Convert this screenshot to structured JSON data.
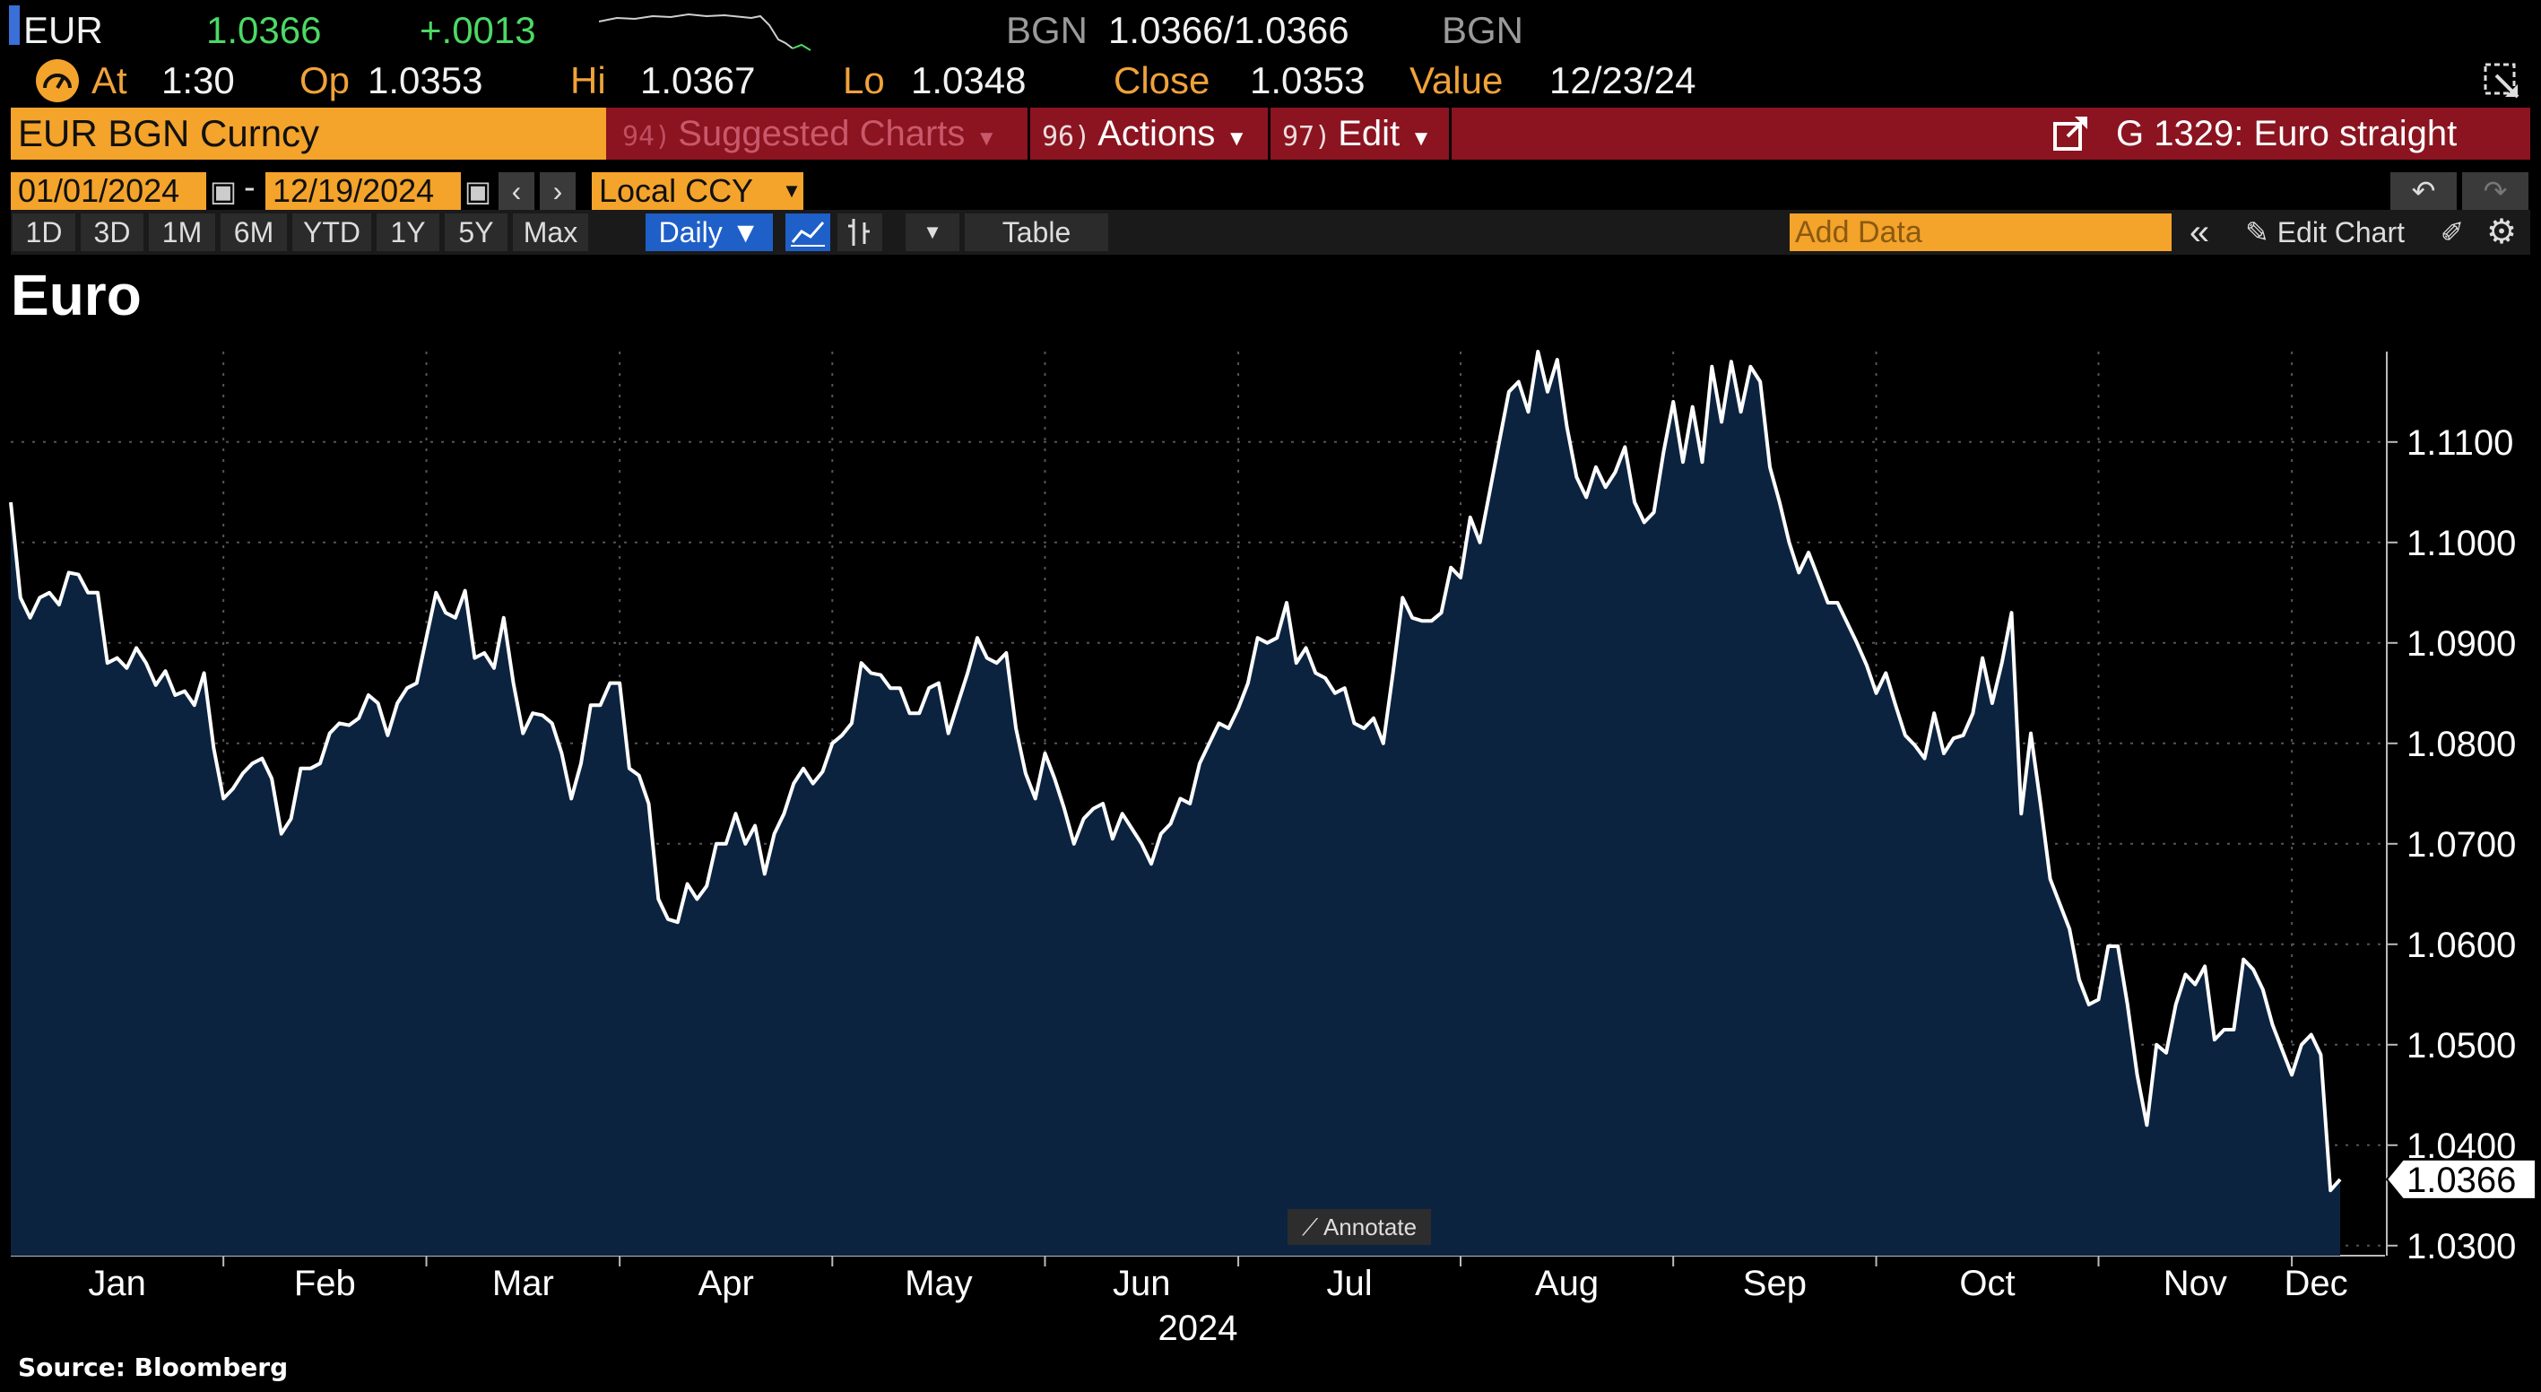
{
  "quote": {
    "ticker": "EUR",
    "last": "1.0366",
    "change": "+.0013",
    "bgn_left": "BGN",
    "bid_ask": "1.0366/1.0366",
    "bgn_right": "BGN",
    "at_label": "At",
    "at_value": "1:30",
    "op_label": "Op",
    "op_value": "1.0353",
    "hi_label": "Hi",
    "hi_value": "1.0367",
    "lo_label": "Lo",
    "lo_value": "1.0348",
    "close_label": "Close",
    "close_value": "1.0353",
    "value_label": "Value",
    "value_value": "12/23/24"
  },
  "toolbar": {
    "security": "EUR BGN Curncy",
    "suggested": {
      "num": "94)",
      "label": "Suggested Charts"
    },
    "actions": {
      "num": "96)",
      "label": "Actions"
    },
    "edit": {
      "num": "97)",
      "label": "Edit"
    },
    "chart_ref": "G 1329: Euro straight"
  },
  "dates": {
    "start": "01/01/2024",
    "end": "12/19/2024",
    "currency": "Local CCY"
  },
  "ranges": [
    "1D",
    "3D",
    "1M",
    "6M",
    "YTD",
    "1Y",
    "5Y",
    "Max"
  ],
  "frequency": "Daily",
  "table_label": "Table",
  "add_data_placeholder": "Add Data",
  "edit_chart_label": "Edit Chart",
  "annotate_label": "Annotate",
  "source": "Source: Bloomberg",
  "colors": {
    "line": "#ffffff",
    "area": "#0c2340",
    "accent": "#f4a32b",
    "toolbar_red": "#8b1420",
    "up_green": "#4cd964"
  },
  "chart_data": {
    "type": "area",
    "title": "Euro",
    "xlabel": "2024",
    "ylabel": "",
    "x_tick_labels": [
      "Jan",
      "Feb",
      "Mar",
      "Apr",
      "May",
      "Jun",
      "Jul",
      "Aug",
      "Sep",
      "Oct",
      "Nov",
      "Dec"
    ],
    "y_ticks": [
      "1.1100",
      "1.1000",
      "1.0900",
      "1.0800",
      "1.0700",
      "1.0600",
      "1.0500",
      "1.0400",
      "1.0300"
    ],
    "ylim": [
      1.029,
      1.119
    ],
    "last_value_label": "1.0366",
    "grid": true,
    "series": [
      {
        "values": [
          1.104,
          1.0945,
          1.0925,
          1.0945,
          1.095,
          1.0938,
          1.097,
          1.0968,
          1.095,
          1.095,
          1.088,
          1.0885,
          1.0875,
          1.0895,
          1.088,
          1.0858,
          1.0872,
          1.0848,
          1.0852,
          1.0838,
          1.087,
          1.0795,
          1.0745,
          1.0755,
          1.077,
          1.078,
          1.0785,
          1.0765,
          1.071,
          1.0725,
          1.0775,
          1.0775,
          1.078,
          1.081,
          1.082,
          1.0818,
          1.0825,
          1.0848,
          1.084,
          1.0808,
          1.084,
          1.0855,
          1.086,
          1.0905,
          1.095,
          1.093,
          1.0925,
          1.0952,
          1.0885,
          1.089,
          1.0875,
          1.0925,
          1.086,
          1.081,
          1.083,
          1.0828,
          1.082,
          1.079,
          1.0745,
          1.078,
          1.0838,
          1.0838,
          1.086,
          1.086,
          1.0775,
          1.0768,
          1.074,
          1.0645,
          1.0625,
          1.0622,
          1.066,
          1.0645,
          1.0658,
          1.07,
          1.07,
          1.073,
          1.07,
          1.0718,
          1.067,
          1.071,
          1.073,
          1.076,
          1.0775,
          1.076,
          1.0772,
          1.08,
          1.0808,
          1.082,
          1.088,
          1.087,
          1.0868,
          1.0855,
          1.0855,
          1.083,
          1.083,
          1.0855,
          1.086,
          1.081,
          1.084,
          1.087,
          1.0905,
          1.0885,
          1.088,
          1.089,
          1.0815,
          1.077,
          1.0745,
          1.079,
          1.0765,
          1.0735,
          1.07,
          1.0725,
          1.0735,
          1.074,
          1.0705,
          1.073,
          1.0715,
          1.07,
          1.068,
          1.071,
          1.072,
          1.0745,
          1.074,
          1.078,
          1.08,
          1.082,
          1.0815,
          1.0835,
          1.086,
          1.0905,
          1.09,
          1.0905,
          1.094,
          1.088,
          1.0895,
          1.087,
          1.0865,
          1.085,
          1.0855,
          1.082,
          1.0815,
          1.0825,
          1.08,
          1.087,
          1.0945,
          1.0925,
          1.0922,
          1.0922,
          1.093,
          1.0975,
          1.0965,
          1.1025,
          1.1,
          1.105,
          1.11,
          1.115,
          1.116,
          1.113,
          1.119,
          1.115,
          1.1182,
          1.1115,
          1.1065,
          1.1045,
          1.1075,
          1.1055,
          1.107,
          1.1095,
          1.104,
          1.102,
          1.103,
          1.109,
          1.114,
          1.108,
          1.1135,
          1.108,
          1.1175,
          1.112,
          1.118,
          1.113,
          1.1175,
          1.116,
          1.1075,
          1.104,
          1.1,
          1.097,
          1.099,
          1.0965,
          1.094,
          1.094,
          1.092,
          1.09,
          1.0878,
          1.085,
          1.087,
          1.0838,
          1.0808,
          1.0798,
          1.0785,
          1.083,
          1.079,
          1.0805,
          1.0808,
          1.083,
          1.0885,
          1.084,
          1.088,
          1.093,
          1.073,
          1.081,
          1.074,
          1.0665,
          1.064,
          1.0615,
          1.0565,
          1.054,
          1.0545,
          1.0598,
          1.0598,
          1.054,
          1.047,
          1.042,
          1.05,
          1.0492,
          1.054,
          1.057,
          1.056,
          1.0578,
          1.0505,
          1.0515,
          1.0515,
          1.0585,
          1.0575,
          1.0555,
          1.052,
          1.0495,
          1.047,
          1.05,
          1.051,
          1.049,
          1.0355,
          1.0366
        ]
      }
    ]
  }
}
